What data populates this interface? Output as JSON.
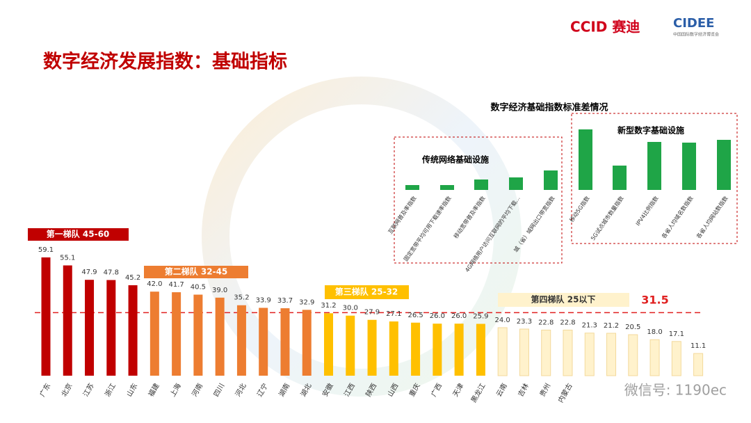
{
  "title": "数字经济发展指数：基础指标",
  "header": {
    "brand": "CCID 赛迪",
    "expo": "CIDEE",
    "expo_sub": "中国国际数字经济博览会"
  },
  "watermark": "微信号: 1190ec",
  "chart_data": [
    {
      "type": "bar",
      "categories": [
        "广东",
        "北京",
        "江苏",
        "浙江",
        "山东",
        "福建",
        "上海",
        "河南",
        "四川",
        "河北",
        "辽宁",
        "湖南",
        "湖北",
        "安徽",
        "江西",
        "陕西",
        "山西",
        "重庆",
        "广西",
        "天津",
        "黑龙江",
        "云南",
        "吉林",
        "贵州",
        "内蒙古",
        null,
        null,
        null,
        null,
        null,
        null
      ],
      "values": [
        59.1,
        55.1,
        47.9,
        47.8,
        45.2,
        42.0,
        41.7,
        40.5,
        39.0,
        35.2,
        33.9,
        33.7,
        32.9,
        31.2,
        30.0,
        27.9,
        27.1,
        26.5,
        26.0,
        26.0,
        25.9,
        24.0,
        23.3,
        22.8,
        22.8,
        21.3,
        21.2,
        20.5,
        18.0,
        17.1,
        11.1
      ],
      "value_labels": [
        "59.1",
        "55.1",
        "47.9",
        "47.8",
        "45.2",
        "42.0",
        "41.7",
        "40.5",
        "39.0",
        "35.2",
        "33.9",
        "33.7",
        "32.9",
        "31.2",
        "30.0",
        "27.9",
        "27.1",
        "26.5",
        "26.0",
        "26.0",
        "25.9",
        "24.0",
        "23.3",
        "22.8",
        "22.8",
        "21.3",
        "21.2",
        "20.5",
        "18.0",
        "17.1",
        "11.1"
      ],
      "colors": [
        "#c00000",
        "#c00000",
        "#c00000",
        "#c00000",
        "#c00000",
        "#ed7d31",
        "#ed7d31",
        "#ed7d31",
        "#ed7d31",
        "#ed7d31",
        "#ed7d31",
        "#ed7d31",
        "#ed7d31",
        "#ffc000",
        "#ffc000",
        "#ffc000",
        "#ffc000",
        "#ffc000",
        "#ffc000",
        "#ffc000",
        "#ffc000",
        "#fff2cc",
        "#fff2cc",
        "#fff2cc",
        "#fff2cc",
        "#fff2cc",
        "#fff2cc",
        "#fff2cc",
        "#fff2cc",
        "#fff2cc",
        "#fff2cc"
      ],
      "tiers": [
        "第一梯队 45-60",
        "第二梯队 32-45",
        "第三梯队 25-32",
        "第四梯队 25以下"
      ],
      "average": 31.5,
      "ylim": [
        0,
        60
      ]
    },
    {
      "type": "bar",
      "title": "数字经济基础指数标准差情况",
      "groups": [
        {
          "name": "传统网络基础设施",
          "categories": [
            "互联网普及率指数",
            "固定宽带平均可用下载速率指数",
            "移动宽带普及率指数",
            "4G网络用户访问互联网的平均下载...",
            "城（省）域网出口带宽指数"
          ],
          "values": [
            7,
            7,
            15,
            18,
            28
          ]
        },
        {
          "name": "新型数字基础设施",
          "categories": [
            "移动5G指数",
            "5G试点城市数量指数",
            "IPV4比例指数",
            "各省人均域名数指数",
            "各省人均网站数指数"
          ],
          "values": [
            87,
            35,
            69,
            68,
            72
          ]
        }
      ],
      "color": "#1fa547",
      "ylim": [
        0,
        100
      ]
    }
  ]
}
